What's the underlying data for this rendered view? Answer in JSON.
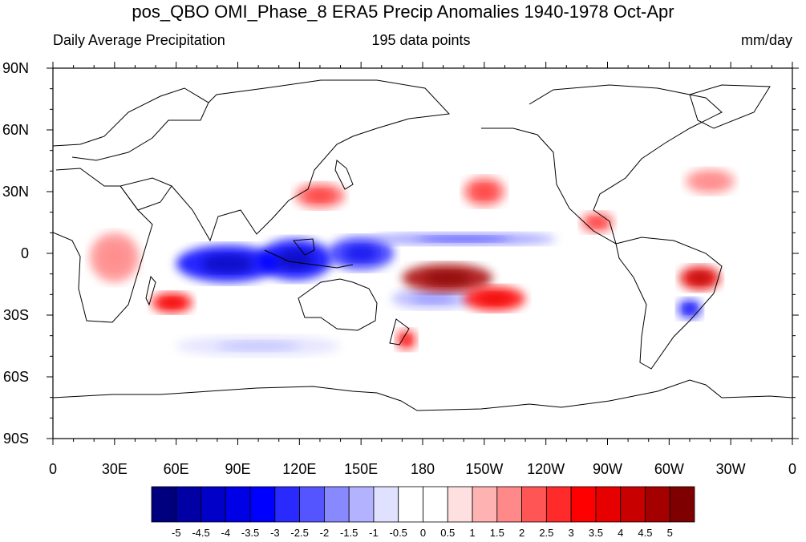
{
  "title": "pos_QBO OMI_Phase_8 ERA5 Precip Anomalies 1940-1978 Oct-Apr",
  "subtitle_left": "Daily Average Precipitation",
  "subtitle_center": "195 data points",
  "subtitle_right": "mm/day",
  "map": {
    "projection": "cylindrical equidistant",
    "center_longitude": 180,
    "lon_range": [
      0,
      360
    ],
    "lat_range": [
      -90,
      90
    ],
    "lat_ticks": [
      "90N",
      "60N",
      "30N",
      "0",
      "30S",
      "60S",
      "90S"
    ],
    "lon_ticks": [
      "0",
      "30E",
      "60E",
      "90E",
      "120E",
      "150E",
      "180",
      "150W",
      "120W",
      "90W",
      "60W",
      "30W",
      "0"
    ]
  },
  "colorbar": {
    "labels": [
      "-5",
      "-4.5",
      "-4",
      "-3.5",
      "-3",
      "-2.5",
      "-2",
      "-1.5",
      "-1",
      "-0.5",
      "0",
      "0.5",
      "1",
      "1.5",
      "2",
      "2.5",
      "3",
      "3.5",
      "4",
      "4.5",
      "5"
    ],
    "colors": [
      "#00007f",
      "#0000a5",
      "#0000c8",
      "#0000e6",
      "#0000ff",
      "#2a2aff",
      "#5555ff",
      "#8888ff",
      "#b2b2ff",
      "#e0e0ff",
      "#ffffff",
      "#ffffff",
      "#ffe0e0",
      "#ffb2b2",
      "#ff8888",
      "#ff5555",
      "#ff2a2a",
      "#ff0000",
      "#e60000",
      "#c80000",
      "#a50000",
      "#7f0000"
    ]
  },
  "anomalies": [
    {
      "name": "indian-ocean-dry-band",
      "lon": 85,
      "lat": -5,
      "rlon": 25,
      "rlat": 9,
      "value": -3.5
    },
    {
      "name": "maritime-continent-dry",
      "lon": 118,
      "lat": -3,
      "rlon": 18,
      "rlat": 10,
      "value": -3.5
    },
    {
      "name": "west-pacific-dry",
      "lon": 150,
      "lat": 0,
      "rlon": 16,
      "rlat": 8,
      "value": -3
    },
    {
      "name": "itcz-dry-band",
      "lon": 200,
      "lat": 7,
      "rlon": 45,
      "rlat": 3,
      "value": -2
    },
    {
      "name": "south-pacific-dry-arc",
      "lon": 185,
      "lat": -22,
      "rlon": 20,
      "rlat": 5,
      "value": -1.5
    },
    {
      "name": "south-america-dry",
      "lon": 310,
      "lat": -27,
      "rlon": 6,
      "rlat": 5,
      "value": -3
    },
    {
      "name": "spcz-wet",
      "lon": 192,
      "lat": -12,
      "rlon": 22,
      "rlat": 7,
      "value": 4.5
    },
    {
      "name": "spcz-wet-tail",
      "lon": 215,
      "lat": -22,
      "rlon": 15,
      "rlat": 6,
      "value": 3
    },
    {
      "name": "southwest-indian-ocean-wet",
      "lon": 58,
      "lat": -24,
      "rlon": 10,
      "rlat": 5,
      "value": 3
    },
    {
      "name": "brazil-wet",
      "lon": 315,
      "lat": -12,
      "rlon": 10,
      "rlat": 6,
      "value": 3.5
    },
    {
      "name": "east-asia-wet",
      "lon": 130,
      "lat": 28,
      "rlon": 12,
      "rlat": 6,
      "value": 2
    },
    {
      "name": "north-pacific-wet",
      "lon": 210,
      "lat": 30,
      "rlon": 10,
      "rlat": 7,
      "value": 2
    },
    {
      "name": "new-zealand-wet",
      "lon": 172,
      "lat": -42,
      "rlon": 5,
      "rlat": 5,
      "value": 2.5
    },
    {
      "name": "africa-wet",
      "lon": 30,
      "lat": -2,
      "rlon": 12,
      "rlat": 12,
      "value": 1.5
    },
    {
      "name": "central-america-wet",
      "lon": 265,
      "lat": 15,
      "rlon": 8,
      "rlat": 5,
      "value": 2
    },
    {
      "name": "north-atlantic-wet",
      "lon": 320,
      "lat": 35,
      "rlon": 12,
      "rlat": 6,
      "value": 1.5
    },
    {
      "name": "southern-ocean-dry",
      "lon": 100,
      "lat": -45,
      "rlon": 40,
      "rlat": 5,
      "value": -0.8
    }
  ]
}
